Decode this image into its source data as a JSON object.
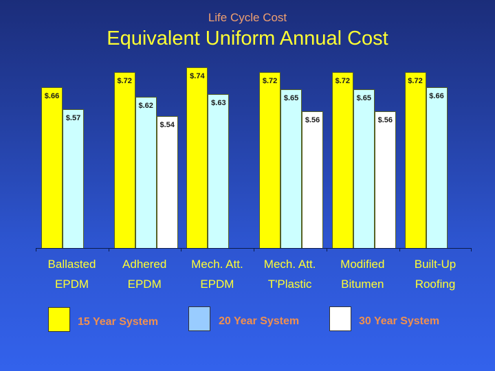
{
  "header": {
    "subtitle": "Life Cycle Cost",
    "title": "Equivalent Uniform Annual Cost"
  },
  "colors": {
    "series_15": "#ffff00",
    "series_20": "#ccffff",
    "series_30": "#ffffff",
    "legend_20": "#99ccff",
    "title": "#ffff33",
    "subtitle": "#f0a070",
    "legend_text": "#f09050"
  },
  "chart_data": {
    "type": "bar",
    "title": "Equivalent Uniform Annual Cost",
    "subtitle": "Life Cycle Cost",
    "xlabel": "",
    "ylabel": "",
    "ylim": [
      0,
      0.74
    ],
    "grid": false,
    "legend_position": "bottom",
    "categories": [
      "Ballasted EPDM",
      "Adhered EPDM",
      "Mech. Att. EPDM",
      "Mech. Att. T'Plastic",
      "Modified Bitumen",
      "Built-Up Roofing"
    ],
    "category_lines": [
      [
        "Ballasted",
        "EPDM"
      ],
      [
        "Adhered",
        "EPDM"
      ],
      [
        "Mech. Att.",
        "EPDM"
      ],
      [
        "Mech. Att.",
        "T'Plastic"
      ],
      [
        "Modified",
        "Bitumen"
      ],
      [
        "Built-Up",
        "Roofing"
      ]
    ],
    "series": [
      {
        "name": "15 Year System",
        "values": [
          0.66,
          0.72,
          0.74,
          0.72,
          0.72,
          0.72
        ],
        "labels": [
          "$.66",
          "$.72",
          "$.74",
          "$.72",
          "$.72",
          "$.72"
        ]
      },
      {
        "name": "20 Year System",
        "values": [
          0.57,
          0.62,
          0.63,
          0.65,
          0.65,
          0.66
        ],
        "labels": [
          "$.57",
          "$.62",
          "$.63",
          "$.65",
          "$.65",
          "$.66"
        ]
      },
      {
        "name": "30 Year System",
        "values": [
          null,
          0.54,
          null,
          0.56,
          0.56,
          null
        ],
        "labels": [
          null,
          "$.54",
          null,
          "$.56",
          "$.56",
          null
        ]
      }
    ]
  },
  "legend": [
    {
      "label": "15 Year System"
    },
    {
      "label": "20 Year System"
    },
    {
      "label": "30 Year System"
    }
  ]
}
